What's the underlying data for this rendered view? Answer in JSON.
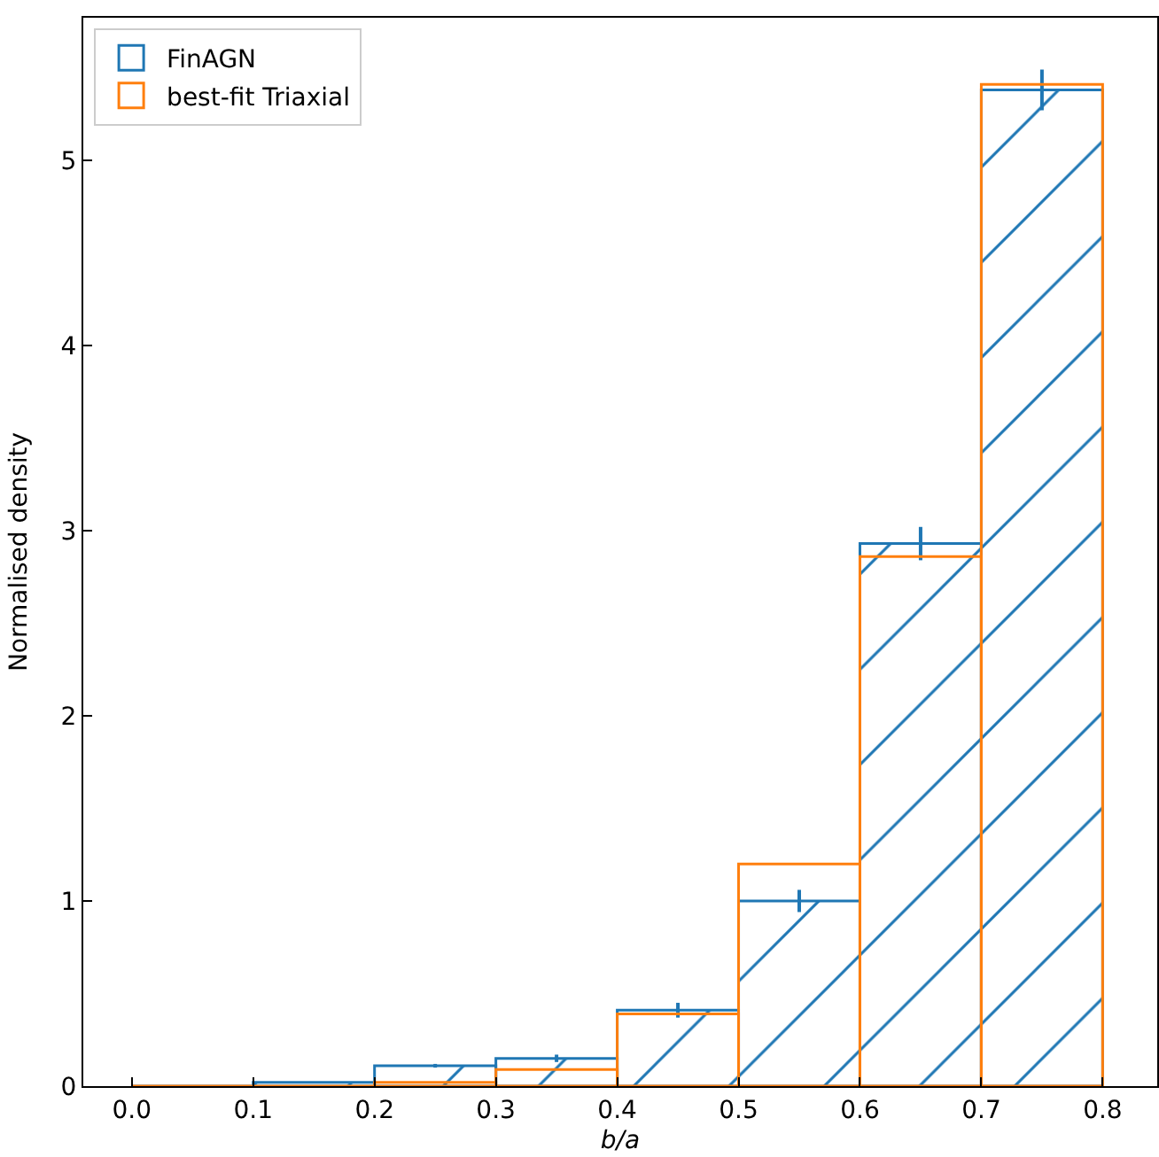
{
  "chart_data": {
    "type": "histogram",
    "xlabel": "b/a",
    "ylabel": "Normalised density",
    "bins": [
      0.0,
      0.1,
      0.2,
      0.3,
      0.4,
      0.5,
      0.6,
      0.7,
      0.8
    ],
    "series": [
      {
        "name": "FinAGN",
        "color": "#1f77b4",
        "values": [
          0,
          0.02,
          0.11,
          0.15,
          0.41,
          1.0,
          2.93,
          5.38
        ],
        "errors": [
          null,
          null,
          0.01,
          0.02,
          0.04,
          0.06,
          0.09,
          0.11
        ]
      },
      {
        "name": "best-fit Triaxial",
        "color": "#ff7f0e",
        "values": [
          0,
          0,
          0.02,
          0.09,
          0.39,
          1.2,
          2.86,
          5.41
        ]
      }
    ],
    "xlim": [
      -0.04,
      0.845
    ],
    "ylim": [
      0,
      5.77
    ],
    "xticks": [
      {
        "value": 0,
        "label": "0.0"
      },
      0.1,
      0.2,
      0.3,
      0.4,
      0.5,
      0.6,
      0.7,
      0.8
    ],
    "yticks": [
      0,
      1,
      2,
      3,
      4,
      5
    ],
    "legend": "top left"
  }
}
